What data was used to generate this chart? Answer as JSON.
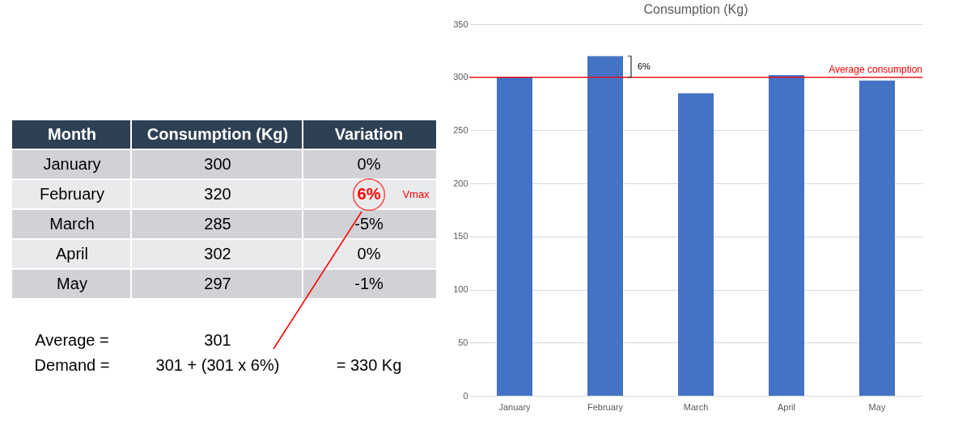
{
  "chart_data": [
    {
      "type": "other",
      "annotations": [
        "Month",
        "Consumption (Kg)",
        "Variation",
        "January",
        "300",
        "0%",
        "February",
        "320",
        "6%",
        "March",
        "285",
        "-5%",
        "April",
        "302",
        "0%",
        "May",
        "297",
        "-1%",
        "Vmax",
        "Average =",
        "301",
        "Demand =",
        "301 + (301 x 6%)",
        "= 330 Kg"
      ]
    },
    {
      "type": "bar",
      "title": "Consumption (Kg)",
      "categories": [
        "January",
        "February",
        "March",
        "April",
        "May"
      ],
      "values": [
        300,
        320,
        285,
        302,
        297
      ],
      "color": "#4472c4",
      "ylim": [
        0,
        350
      ],
      "yticks": [
        0,
        50,
        100,
        150,
        200,
        250,
        300,
        350
      ],
      "grid": "y",
      "ref_lines": [
        {
          "axis": "y",
          "value": 300,
          "label": "Average consumption",
          "color": "#ff0000"
        }
      ],
      "annotations": [
        "6%"
      ]
    }
  ]
}
